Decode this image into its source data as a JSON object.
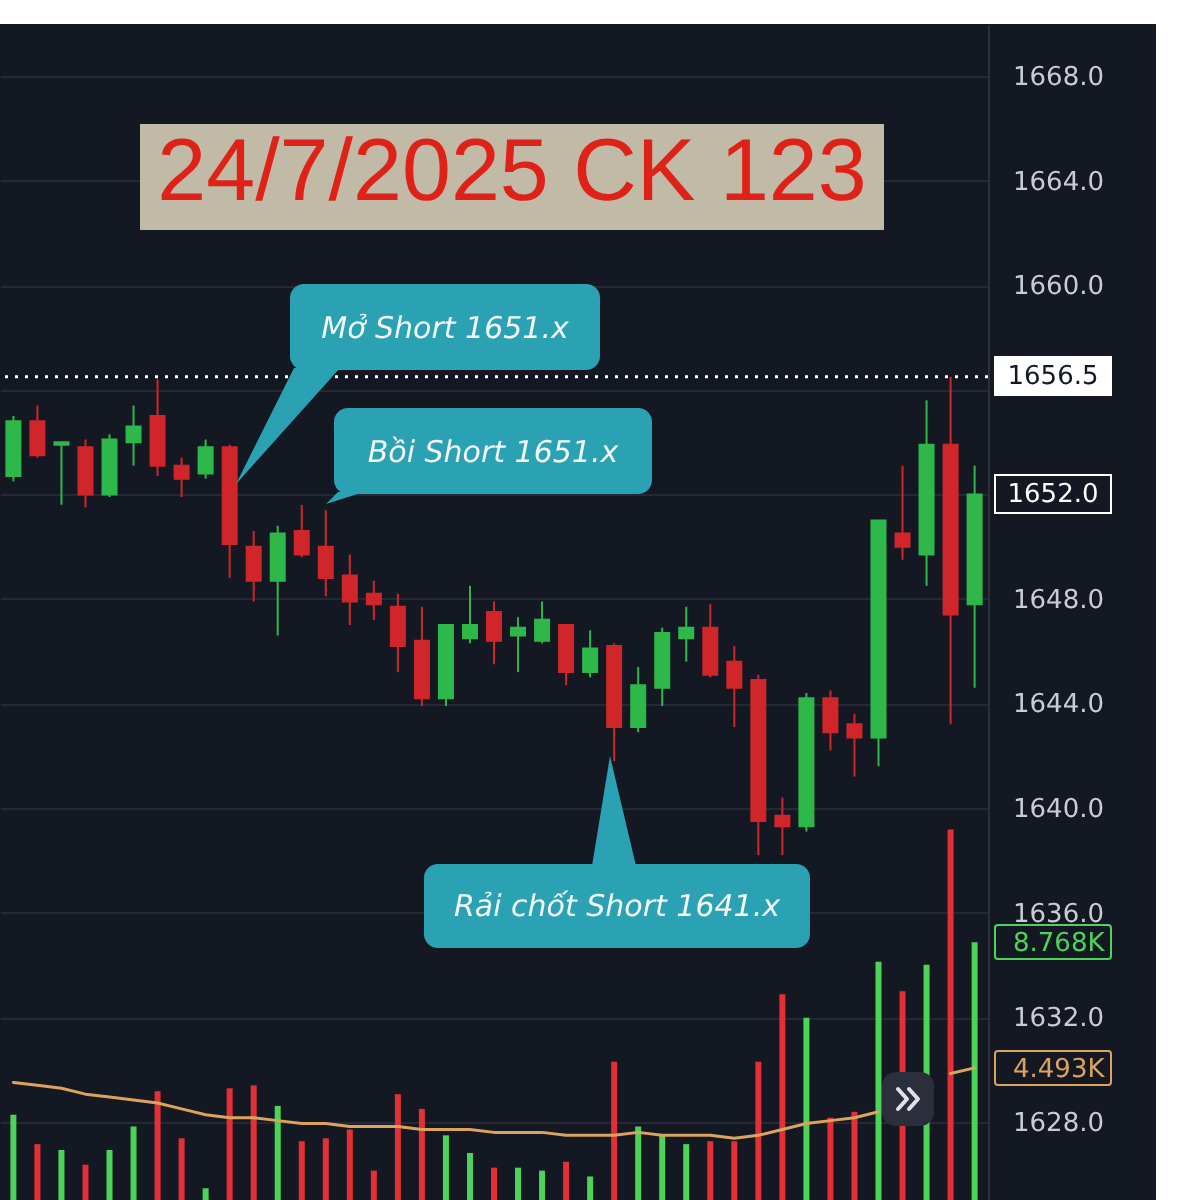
{
  "chart_data": {
    "type": "candlestick",
    "title": "24/7/2025 CK 123",
    "categories": [
      null,
      null,
      null,
      null,
      null,
      null,
      null,
      null,
      null,
      null,
      null,
      null,
      null,
      null,
      null,
      null,
      null,
      null,
      null,
      null,
      null,
      null,
      null,
      null,
      null,
      null,
      null,
      null,
      null,
      null,
      null,
      null,
      null,
      null,
      null,
      null,
      null,
      null,
      null,
      null,
      null
    ],
    "ohlc": [
      [
        1652.7,
        1655.0,
        1652.5,
        1654.8
      ],
      [
        1654.8,
        1655.4,
        1653.4,
        1653.5
      ],
      [
        1653.9,
        1654.0,
        1651.6,
        1654.0
      ],
      [
        1653.8,
        1654.1,
        1651.5,
        1652.0
      ],
      [
        1652.0,
        1654.3,
        1651.9,
        1654.1
      ],
      [
        1654.0,
        1655.4,
        1653.1,
        1654.6
      ],
      [
        1655.0,
        1656.4,
        1652.7,
        1653.1
      ],
      [
        1653.1,
        1653.4,
        1651.9,
        1652.6
      ],
      [
        1652.8,
        1654.1,
        1652.6,
        1653.8
      ],
      [
        1653.8,
        1653.9,
        1648.8,
        1650.1
      ],
      [
        1650.0,
        1650.6,
        1647.9,
        1648.7
      ],
      [
        1648.7,
        1650.8,
        1646.6,
        1650.5
      ],
      [
        1650.6,
        1651.6,
        1649.6,
        1649.7
      ],
      [
        1650.0,
        1651.4,
        1648.1,
        1648.8
      ],
      [
        1648.9,
        1649.7,
        1647.0,
        1647.9
      ],
      [
        1648.2,
        1648.7,
        1647.2,
        1647.8
      ],
      [
        1647.7,
        1648.2,
        1645.2,
        1646.2
      ],
      [
        1646.4,
        1647.7,
        1643.9,
        1644.2
      ],
      [
        1644.2,
        1647.0,
        1643.9,
        1647.0
      ],
      [
        1646.5,
        1648.5,
        1646.3,
        1647.0
      ],
      [
        1647.5,
        1647.9,
        1645.5,
        1646.4
      ],
      [
        1646.6,
        1647.3,
        1645.2,
        1646.9
      ],
      [
        1646.4,
        1647.9,
        1646.3,
        1647.2
      ],
      [
        1647.0,
        1647.0,
        1644.7,
        1645.2
      ],
      [
        1645.2,
        1646.8,
        1645.0,
        1646.1
      ],
      [
        1646.2,
        1646.3,
        1641.8,
        1643.1
      ],
      [
        1643.1,
        1645.4,
        1642.9,
        1644.7
      ],
      [
        1644.6,
        1646.9,
        1643.9,
        1646.7
      ],
      [
        1646.5,
        1647.7,
        1645.6,
        1646.9
      ],
      [
        1646.9,
        1647.8,
        1645.0,
        1645.1
      ],
      [
        1645.6,
        1646.2,
        1643.1,
        1644.6
      ],
      [
        1644.9,
        1645.1,
        1638.2,
        1639.5
      ],
      [
        1639.7,
        1640.4,
        1638.2,
        1639.3
      ],
      [
        1639.3,
        1644.4,
        1639.1,
        1644.2
      ],
      [
        1644.2,
        1644.5,
        1642.2,
        1642.9
      ],
      [
        1643.2,
        1643.6,
        1641.2,
        1642.7
      ],
      [
        1642.7,
        1651.0,
        1641.6,
        1651.0
      ],
      [
        1650.5,
        1653.1,
        1649.5,
        1650.0
      ],
      [
        1649.7,
        1655.6,
        1648.5,
        1653.9
      ],
      [
        1653.9,
        1656.5,
        1643.2,
        1647.4
      ],
      [
        1647.8,
        1653.1,
        1644.6,
        1652.0
      ]
    ],
    "colors": [
      "#2fb84a",
      "#d0262a",
      "#2fb84a",
      "#d0262a",
      "#2fb84a",
      "#2fb84a",
      "#d0262a",
      "#d0262a",
      "#2fb84a",
      "#d0262a",
      "#d0262a",
      "#2fb84a",
      "#d0262a",
      "#d0262a",
      "#d0262a",
      "#d0262a",
      "#d0262a",
      "#d0262a",
      "#2fb84a",
      "#2fb84a",
      "#d0262a",
      "#2fb84a",
      "#2fb84a",
      "#d0262a",
      "#2fb84a",
      "#d0262a",
      "#2fb84a",
      "#2fb84a",
      "#2fb84a",
      "#d0262a",
      "#d0262a",
      "#d0262a",
      "#d0262a",
      "#2fb84a",
      "#d0262a",
      "#d0262a",
      "#2fb84a",
      "#d0262a",
      "#2fb84a",
      "#d0262a",
      "#2fb84a"
    ],
    "series": [
      {
        "type": "bar",
        "axis": "y2",
        "colors": [
          "#4cd45a",
          "#e33036",
          "#4cd45a",
          "#e33036",
          "#4cd45a",
          "#4cd45a",
          "#e33036",
          "#e33036",
          "#4cd45a",
          "#e33036",
          "#e33036",
          "#4cd45a",
          "#e33036",
          "#e33036",
          "#e33036",
          "#e33036",
          "#e33036",
          "#e33036",
          "#4cd45a",
          "#4cd45a",
          "#e33036",
          "#4cd45a",
          "#4cd45a",
          "#e33036",
          "#4cd45a",
          "#e33036",
          "#4cd45a",
          "#4cd45a",
          "#4cd45a",
          "#e33036",
          "#e33036",
          "#e33036",
          "#e33036",
          "#4cd45a",
          "#e33036",
          "#e33036",
          "#4cd45a",
          "#e33036",
          "#4cd45a",
          "#e33036",
          "#4cd45a"
        ],
        "values": [
          2.9,
          1.9,
          1.7,
          1.2,
          1.7,
          2.5,
          3.7,
          2.1,
          0.4,
          3.8,
          3.9,
          3.2,
          2.0,
          2.1,
          2.4,
          1.0,
          3.6,
          3.1,
          2.2,
          1.6,
          1.1,
          1.1,
          1.0,
          1.3,
          0.8,
          4.7,
          2.5,
          2.2,
          1.9,
          2.0,
          2.0,
          4.7,
          7.0,
          6.2,
          2.8,
          3.0,
          8.1,
          7.1,
          8.0,
          12.6,
          8.768
        ]
      },
      {
        "type": "line",
        "axis": "y2",
        "color": "#dba35c",
        "values": [
          4.0,
          3.9,
          3.8,
          3.6,
          3.5,
          3.4,
          3.3,
          3.1,
          2.9,
          2.8,
          2.8,
          2.7,
          2.6,
          2.6,
          2.5,
          2.5,
          2.5,
          2.4,
          2.4,
          2.4,
          2.3,
          2.3,
          2.3,
          2.2,
          2.2,
          2.2,
          2.3,
          2.2,
          2.2,
          2.2,
          2.1,
          2.2,
          2.4,
          2.6,
          2.7,
          2.8,
          3.0,
          null,
          null,
          4.3,
          4.493
        ]
      }
    ],
    "ylim": [
      1625,
      1670
    ],
    "yticks": [
      {
        "value": 1628,
        "label": "1628.0"
      },
      {
        "value": 1632,
        "label": "1632.0"
      },
      {
        "value": 1636,
        "label": "1636.0"
      },
      {
        "value": 1640,
        "label": "1640.0"
      },
      {
        "value": 1644,
        "label": "1644.0"
      },
      {
        "value": 1648,
        "label": "1648.0"
      },
      {
        "value": 1652,
        "label": null
      },
      {
        "value": 1656,
        "label": null
      },
      {
        "value": 1660,
        "label": "1660.0"
      },
      {
        "value": 1664,
        "label": "1664.0"
      },
      {
        "value": 1668,
        "label": "1668.0"
      }
    ],
    "y2lim": [
      0,
      40
    ],
    "y2ticks": [
      {
        "value": 4.493,
        "label": "4.493K"
      },
      {
        "value": 8.768,
        "label": "8.768K"
      }
    ],
    "grid": "y",
    "ref_lines": [
      {
        "axis": "y",
        "value": 1656.5,
        "label": "1656.5",
        "color": "#ffffff",
        "line_style": "dotted"
      }
    ],
    "annotations": [
      "Mở Short 1651.x",
      "Bồi Short 1651.x",
      "Rải chốt Short 1641.x",
      "1652.0"
    ]
  }
}
